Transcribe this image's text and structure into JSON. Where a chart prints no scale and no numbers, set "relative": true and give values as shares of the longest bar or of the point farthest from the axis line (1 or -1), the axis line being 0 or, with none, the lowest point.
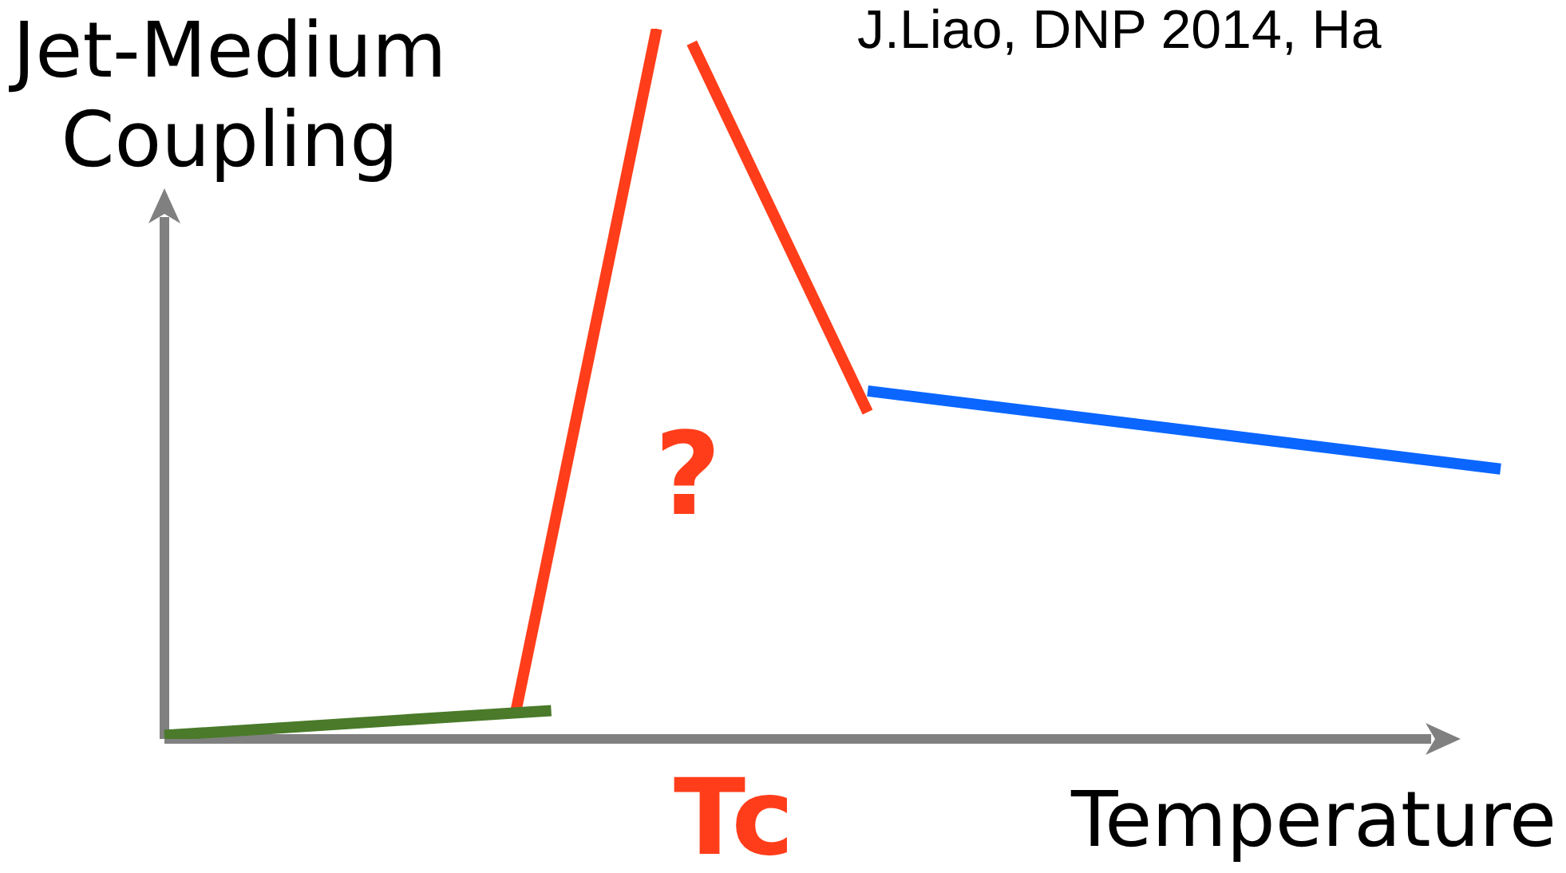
{
  "chart_data": {
    "type": "line",
    "relative": true,
    "xlabel": "Temperature",
    "ylabel": "Jet-Medium Coupling",
    "legend": false,
    "marker": "none",
    "categories": [
      null,
      null,
      null,
      null,
      null,
      null,
      null,
      null,
      null,
      null,
      null,
      null,
      null,
      null,
      null,
      null,
      null,
      null,
      null,
      null,
      null,
      null,
      null,
      null,
      null,
      null,
      null,
      null,
      null,
      null,
      null,
      null,
      null,
      null,
      null,
      null,
      null,
      null,
      null
    ],
    "series": [
      {
        "color": "#4a7a2a",
        "values": [
          0.005,
          null,
          null,
          null,
          null,
          null,
          null,
          null,
          null,
          null,
          null,
          0.04,
          null,
          null,
          null,
          null,
          null,
          null,
          null,
          null,
          null,
          null,
          null,
          null,
          null,
          null,
          null,
          null,
          null,
          null,
          null,
          null,
          null,
          null,
          null,
          null,
          null,
          null,
          null
        ]
      },
      {
        "color": "#ff3d1a",
        "values": [
          null,
          null,
          null,
          null,
          null,
          null,
          null,
          null,
          null,
          null,
          0.04,
          null,
          null,
          null,
          1,
          null,
          null,
          null,
          null,
          null,
          null,
          null,
          null,
          null,
          null,
          null,
          null,
          null,
          null,
          null,
          null,
          null,
          null,
          null,
          null,
          null,
          null,
          null,
          null
        ]
      },
      {
        "color": "#ff3d1a",
        "values": [
          null,
          null,
          null,
          null,
          null,
          null,
          null,
          null,
          null,
          null,
          null,
          null,
          null,
          null,
          null,
          0.98,
          null,
          null,
          null,
          null,
          0.46,
          null,
          null,
          null,
          null,
          null,
          null,
          null,
          null,
          null,
          null,
          null,
          null,
          null,
          null,
          null,
          null,
          null,
          null
        ]
      },
      {
        "color": "#0a66ff",
        "values": [
          null,
          null,
          null,
          null,
          null,
          null,
          null,
          null,
          null,
          null,
          null,
          null,
          null,
          null,
          null,
          null,
          null,
          null,
          null,
          null,
          0.49,
          null,
          null,
          null,
          null,
          null,
          null,
          null,
          null,
          null,
          null,
          null,
          null,
          null,
          null,
          null,
          null,
          null,
          0.38
        ]
      }
    ],
    "annotations": [
      "J.Liao, DNP 2014, Ha",
      "?",
      "Tc"
    ]
  }
}
